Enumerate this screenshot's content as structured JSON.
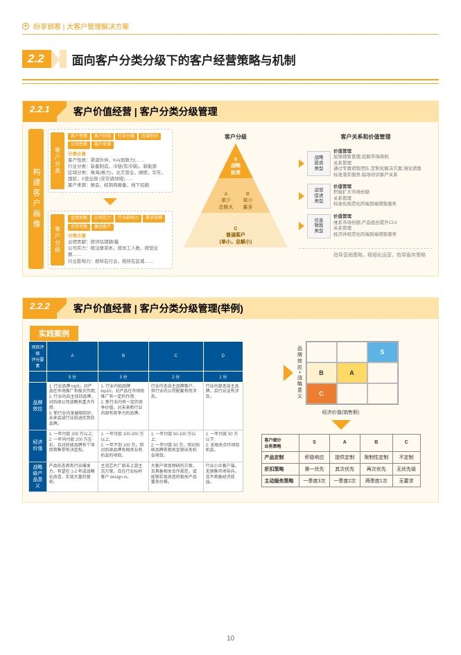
{
  "header": {
    "breadcrumb": "纷享销客 | 大客户管理解决方案"
  },
  "section": {
    "num": "2.2",
    "title": "面向客户分类分级下的客户经营策略与机制"
  },
  "sub1": {
    "num": "2.2.1",
    "title": "客户价值经营 | 客户分类分级管理",
    "vertPill": "构建客户画像",
    "box1": {
      "tag": "客户分类",
      "chips": [
        "客户性质",
        "客户阶段",
        "行业分类",
        "区域划分",
        "公司性质",
        "客户来源"
      ],
      "head": "分类示意",
      "l1": "客户性质：渠道伙伴、KA(如致力)……",
      "l2": "行业分类：装备制造，冷链(有冷锅)，新能源",
      "l3": "区域分类：珠海(格力)，北方营业，顺德，华东，国际，X营业部 (非空调领域)……",
      "l4": "客户来源：展会，经销商报备，线下挖掘"
    },
    "box2": {
      "tag": "客户分级",
      "chips": [
        "金销贡献",
        "公司实力",
        "行业影响力",
        "需求规模",
        "合作年限",
        "集团客户"
      ],
      "head": "分类示意",
      "l1": "业绩贡献：按评估销额/量",
      "l2": "公司实力：按注册资本，按员工人数，按营业额……",
      "l3": "行业影响力：按所在行业，按所在区域……"
    },
    "pyrLabel": "客户分级",
    "pyramid": {
      "top": "S\n战略\n投资",
      "midL": "A\n单少\n总额大",
      "midR": "B\n单小\n量多",
      "bot": "C\n普通客户\n(单小，总额小)"
    },
    "rightHead": "客户关系和价值管理",
    "strat": [
      {
        "tag": "战略\n投资\n类型",
        "title": "价值管理",
        "body": "加强销售管理,挖掘市场商机\n关系管理\n通过专属销售团队,定制化解决方案,强化销售\n标准落实服务,临场培训客户关系"
      },
      {
        "tag": "运营\n促进\n类型",
        "title": "价值管理",
        "body": "积极扩大市场份额\n关系管理\n标准化规范化的端到端销售服务"
      },
      {
        "tag": "信息\n致胜\n类型",
        "title": "价值管理",
        "body": "维系市场份额,产品组合提升CLV\n关系管理\n经济并规范化的端到端销售服务"
      }
    ],
    "footnote": "指导营销策略，精细化运营，指导服务策略"
  },
  "sub2": {
    "num": "2.2.2",
    "title": "客户价值经营 | 客户分类分级管理(举例)",
    "caseLabel": "实践案例",
    "scoreTable": {
      "headTop": [
        "项目评级\n评分要素",
        "A",
        "B",
        "C",
        "D"
      ],
      "headSub": [
        "",
        "5 分",
        "3 分",
        "2 分",
        "1 分"
      ],
      "rows": [
        {
          "label": "品牌效应",
          "cells": [
            "1. 行业品牌 top5，对产品在市场推广有极大作用;\n2. 行业内自主扶持品牌，对后续公司战略有重大作用;\n3. 新行业内发展相较好，未来会成行业前途优势的品牌。",
            "1. 行业内知品牌 top10，对产品在市场拓推广有一定的作用;\n2. 新行业内有一定的竞争价值，对未来新行业内部有竞争力的品牌。",
            "行业内无自主品牌客户，但行业内公司配套有所涉及。",
            "行业内部无自主品牌，且行业没有涉及。"
          ]
        },
        {
          "label": "经济价值",
          "cells": [
            "1. 一年付款 200 万以上;\n2. 一年内付款 200 万左右，且对后续品牌有个项目销售带有决定权。",
            "1. 一年付款 100-200 万以上;\n2. 一年不到 100 万，但对后续品牌有相关业务机会的项目。",
            "1. 一年付款 50-100 万以上;\n2. 一年付款 50 万，但对后续品牌有相关金销业务机会项目。",
            "1. 一年付款 50 万以下;\n2. 无相关合作项目机会。"
          ]
        },
        {
          "label": "战略级产品意义",
          "cells": [
            "产品形态具有行业爆发力，有望在 1-2 年成战略化改造，实现大量的营收。",
            "主流芯片厂商未上游主流方案，且在行业标杆客户 design in。",
            "大客户项目预研的方案，且具备相关合作规范，或能够实现改造的相关产品量及价格。",
            "行业小众客户端，无销售市场导向，且不具备经济效益。"
          ]
        }
      ]
    },
    "matrix": {
      "ylabel": "品牌效应+战略意义",
      "xlabel": "经济价值(销售额)",
      "cells": {
        "s": "S",
        "a": "A",
        "b": "B",
        "c": "C"
      }
    },
    "stratTable": {
      "head": [
        "客户细分\n业务策略",
        "S",
        "A",
        "B",
        "C"
      ],
      "rows": [
        [
          "产品定制",
          "积极响应",
          "提供定制",
          "限制性定制",
          "不定制"
        ],
        [
          "折扣策略",
          "第一优先",
          "其次优先",
          "再次优先",
          "无优先级"
        ],
        [
          "主动服务策略",
          "一季度3次",
          "一季度2次",
          "两季度1次",
          "无要求"
        ]
      ]
    }
  },
  "pageNum": "10"
}
